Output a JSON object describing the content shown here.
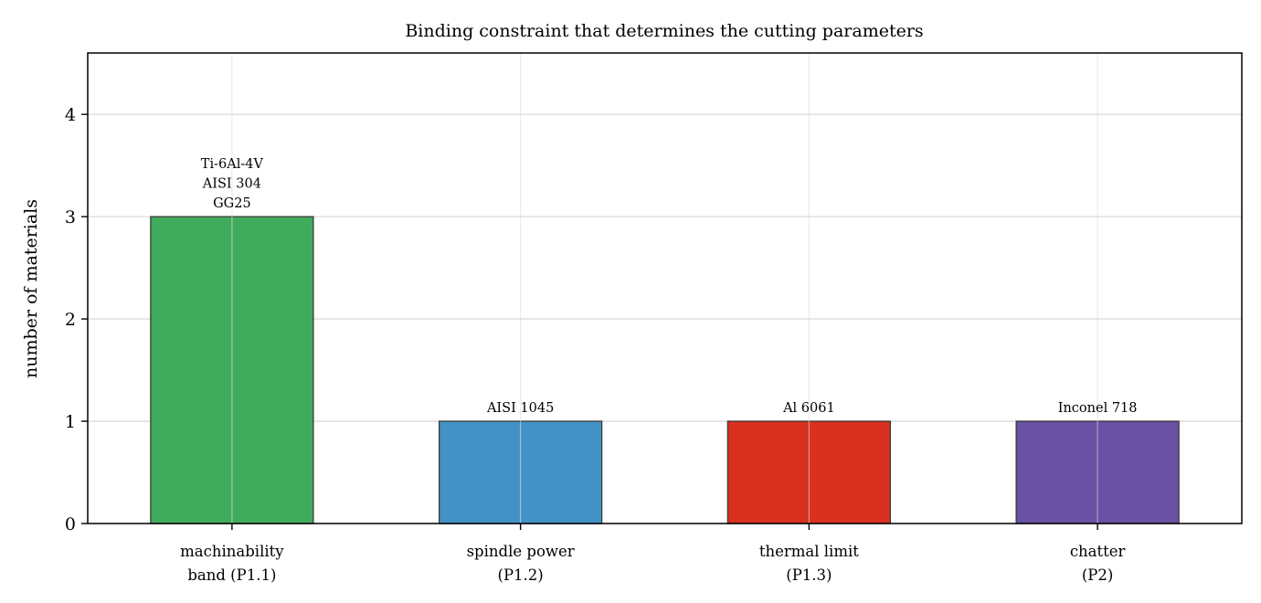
{
  "chart_data": {
    "type": "bar",
    "title": "Binding constraint that determines the cutting parameters",
    "xlabel": "",
    "ylabel": "number of materials",
    "ylim": [
      0,
      4.6
    ],
    "yticks": [
      "0",
      "1",
      "2",
      "3",
      "4"
    ],
    "grid": true,
    "categories": [
      [
        "machinability",
        "band (P1.1)"
      ],
      [
        "spindle power",
        "(P1.2)"
      ],
      [
        "thermal limit",
        "(P1.3)"
      ],
      [
        "chatter",
        "(P2)"
      ]
    ],
    "values": [
      3,
      1,
      1,
      1
    ],
    "bar_labels": [
      [
        "Ti-6Al-4V",
        "AISI 304",
        "GG25"
      ],
      [
        "AISI 1045"
      ],
      [
        "Al 6061"
      ],
      [
        "Inconel 718"
      ]
    ],
    "colors": [
      "#41ab5d",
      "#4292c6",
      "#d93020",
      "#6a51a3"
    ]
  }
}
